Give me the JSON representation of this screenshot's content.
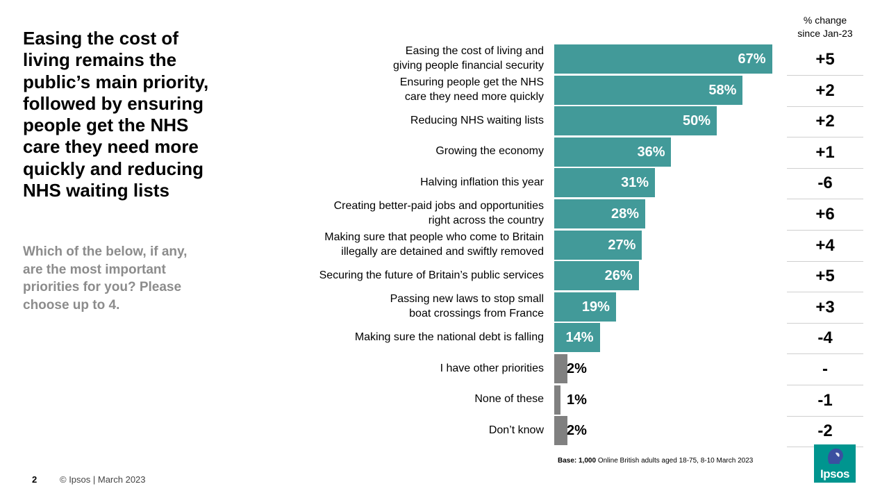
{
  "headline": "Easing the cost of living remains the public’s main priority, followed by ensuring people get the NHS care they need more quickly and reducing NHS waiting lists",
  "question": "Which of the below, if any, are the most important priorities for you? Please choose up to 4.",
  "change_header": [
    "% change",
    "since Jan-23"
  ],
  "base_label": "Base:",
  "base_n": "1,000",
  "base_text": "Online British adults aged 18-75, 8-10 March 2023",
  "page_number": "2",
  "copyright": "© Ipsos | March 2023",
  "logo_text": "Ipsos",
  "colors": {
    "main_bar": "#429a99",
    "other_bar": "#808080",
    "logo": "#00958f"
  },
  "chart_data": {
    "type": "bar",
    "orientation": "horizontal",
    "xlim": [
      0,
      100
    ],
    "categories": [
      [
        "Easing the cost of living and",
        "giving people financial security"
      ],
      [
        "Ensuring people get the NHS",
        "care they need more quickly"
      ],
      [
        "Reducing NHS waiting lists"
      ],
      [
        "Growing the economy"
      ],
      [
        "Halving inflation this year"
      ],
      [
        "Creating better-paid jobs and opportunities",
        "right across the country"
      ],
      [
        "Making sure that people who come to Britain",
        "illegally are detained and swiftly removed"
      ],
      [
        "Securing the future of Britain’s public services"
      ],
      [
        "Passing new laws to stop small",
        "boat crossings from France"
      ],
      [
        "Making sure the national debt is falling"
      ],
      [
        "I have other priorities"
      ],
      [
        "None of these"
      ],
      [
        "Don’t know"
      ]
    ],
    "values": [
      67,
      58,
      50,
      36,
      31,
      28,
      27,
      26,
      19,
      14,
      2,
      1,
      2
    ],
    "value_labels": [
      "67%",
      "58%",
      "50%",
      "36%",
      "31%",
      "28%",
      "27%",
      "26%",
      "19%",
      "14%",
      "2%",
      "1%",
      "2%"
    ],
    "change_since_jan23": [
      "+5",
      "+2",
      "+2",
      "+1",
      "-6",
      "+6",
      "+4",
      "+5",
      "+3",
      "-4",
      "-",
      "-1",
      "-2"
    ],
    "bar_group": [
      "main",
      "main",
      "main",
      "main",
      "main",
      "main",
      "main",
      "main",
      "main",
      "main",
      "other",
      "other",
      "other"
    ]
  }
}
